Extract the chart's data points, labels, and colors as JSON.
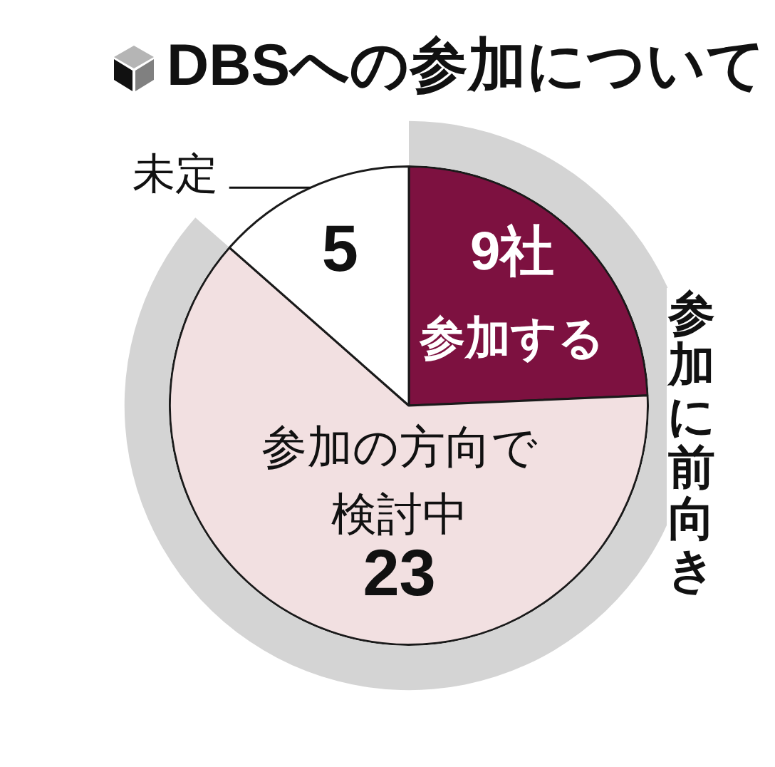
{
  "chart_data": {
    "type": "pie",
    "title": "DBSへの参加について",
    "categories": [
      "参加する",
      "参加の方向で検討中",
      "未定"
    ],
    "values": [
      9,
      23,
      5
    ],
    "colors": [
      "#7d1140",
      "#f2e0e1",
      "#ffffff"
    ],
    "value_labels": [
      "9社",
      "23",
      "5"
    ],
    "annotations": [
      "参加に前向き"
    ]
  }
}
